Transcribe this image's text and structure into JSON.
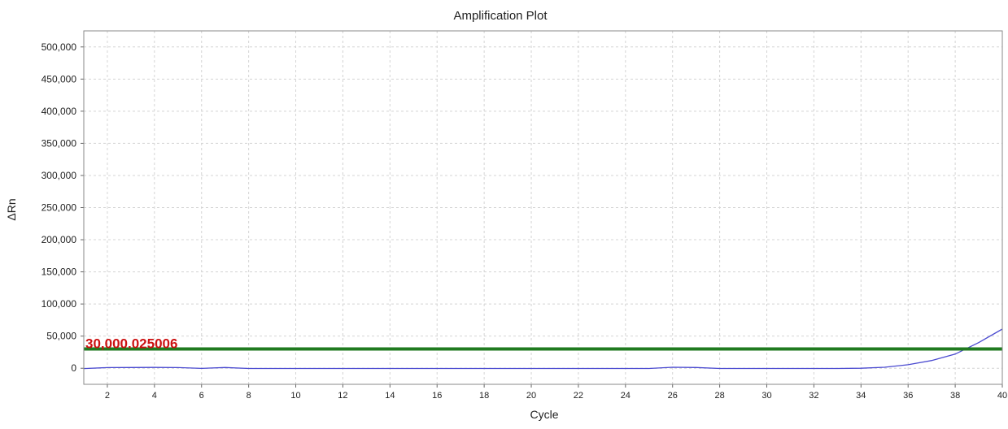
{
  "chart_data": {
    "type": "line",
    "title": "Amplification Plot",
    "xlabel": "Cycle",
    "ylabel": "ΔRn",
    "xlim": [
      1,
      40
    ],
    "ylim": [
      -25000,
      525000
    ],
    "xticks": [
      2,
      4,
      6,
      8,
      10,
      12,
      14,
      16,
      18,
      20,
      22,
      24,
      26,
      28,
      30,
      32,
      34,
      36,
      38,
      40
    ],
    "yticks": [
      0,
      50000,
      100000,
      150000,
      200000,
      250000,
      300000,
      350000,
      400000,
      450000,
      500000
    ],
    "ytick_labels": [
      "0",
      "50,000",
      "100,000",
      "150,000",
      "200,000",
      "250,000",
      "300,000",
      "350,000",
      "400,000",
      "450,000",
      "500,000"
    ],
    "grid": true,
    "series": [
      {
        "color": "#4a4ad0",
        "x": [
          1,
          2,
          3,
          4,
          5,
          6,
          7,
          8,
          9,
          10,
          11,
          12,
          13,
          14,
          15,
          16,
          17,
          18,
          19,
          20,
          21,
          22,
          23,
          24,
          25,
          26,
          27,
          28,
          29,
          30,
          31,
          32,
          33,
          34,
          35,
          36,
          37,
          38,
          39,
          40
        ],
        "y": [
          -500,
          1000,
          1200,
          1300,
          1000,
          -200,
          1200,
          -300,
          -300,
          -400,
          -400,
          -400,
          -400,
          -400,
          -400,
          -400,
          -400,
          -400,
          -400,
          -400,
          -400,
          -400,
          -400,
          -400,
          -300,
          1500,
          1200,
          -300,
          -400,
          -400,
          -400,
          -400,
          -400,
          0,
          1500,
          5500,
          12000,
          22000,
          40000,
          61000
        ]
      }
    ],
    "threshold": {
      "value": 30000,
      "label": "30,000.025006",
      "color": "#1f7a1f",
      "label_color": "#cc1111"
    }
  }
}
